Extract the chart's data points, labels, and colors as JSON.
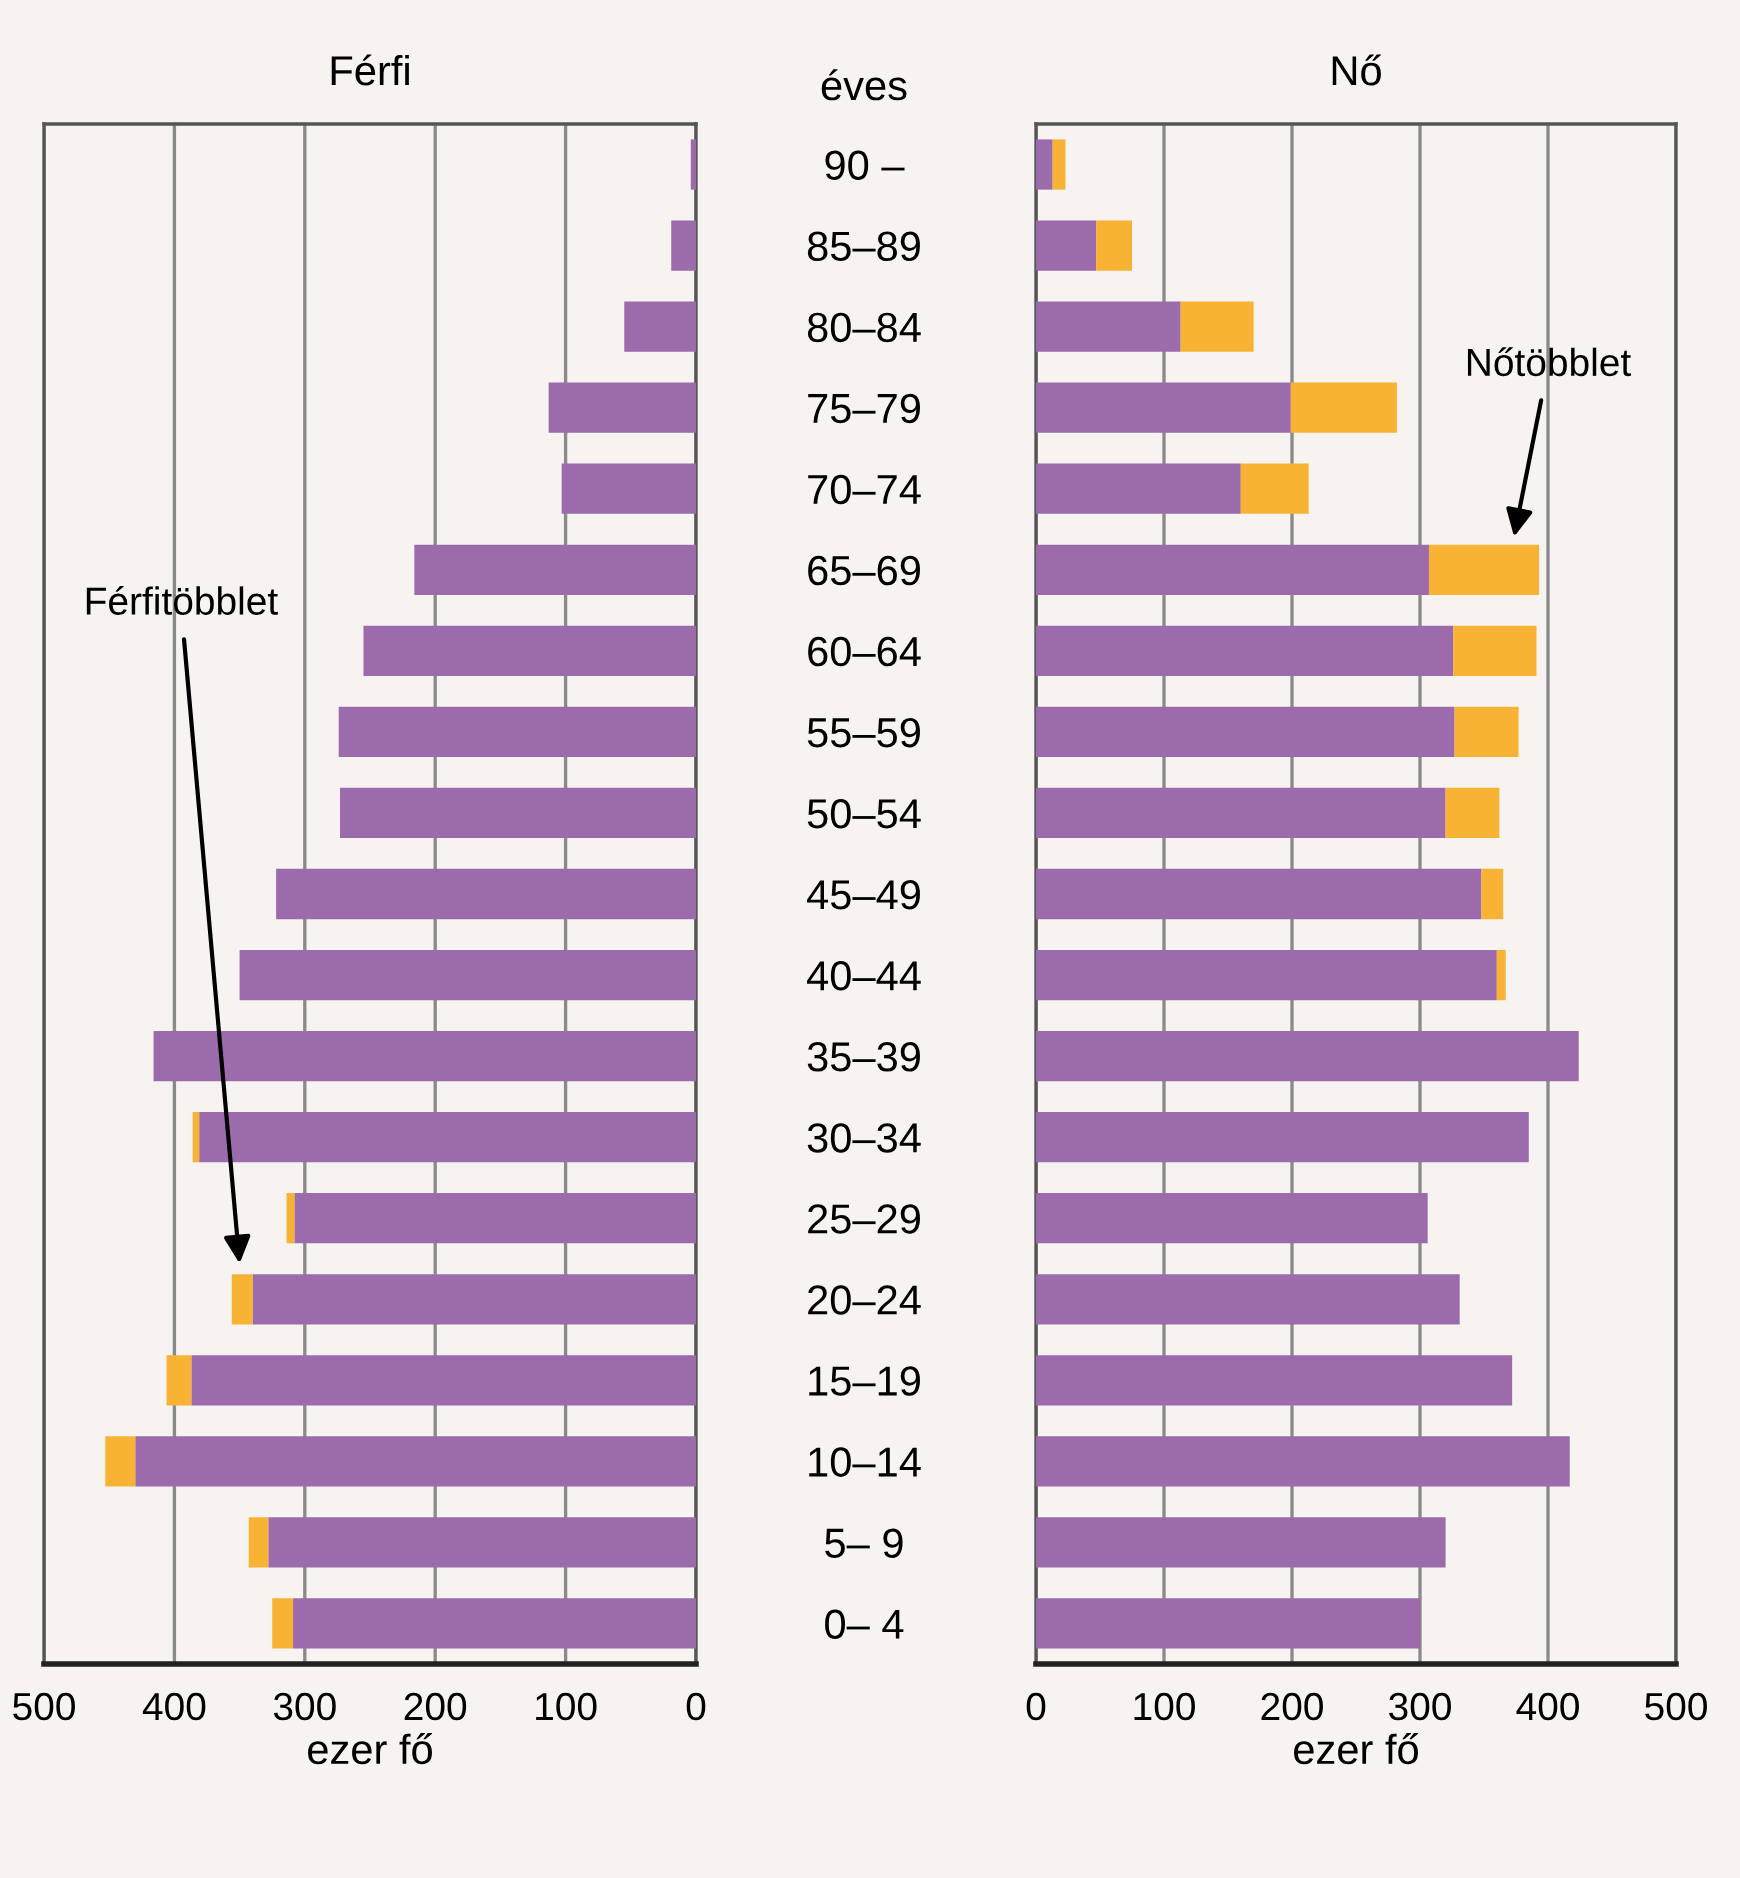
{
  "chart_data": [
    {
      "type": "bar",
      "orientation": "horizontal",
      "stacked": true,
      "title": "Férfi",
      "xlabel": "ezer fő",
      "categories": [
        null,
        null,
        null,
        null,
        null,
        null,
        null,
        null,
        null,
        null,
        null,
        null,
        null,
        null,
        null,
        null,
        null,
        null,
        null
      ],
      "series": [
        {
          "color": "#9b6bab",
          "values": [
            4,
            19,
            55,
            113,
            103,
            216,
            255,
            274,
            273,
            322,
            350,
            416,
            381,
            308,
            340,
            387,
            430,
            328,
            309
          ]
        },
        {
          "color": "#f8b334",
          "values": [
            0,
            0,
            0,
            0,
            0,
            0,
            0,
            0,
            0,
            0,
            0,
            0,
            5,
            6,
            16,
            19,
            23,
            15,
            16
          ]
        }
      ],
      "xlim": [
        500,
        0
      ],
      "xticks": [
        500,
        400,
        300,
        200,
        100,
        0
      ],
      "grid": "x",
      "tick_labels": "x",
      "annotations": [
        "Férfitöbblet"
      ]
    },
    {
      "type": "bar",
      "orientation": "horizontal",
      "stacked": true,
      "title": "Nő",
      "xlabel": "ezer fő",
      "ylabel": "éves",
      "categories": [
        "90 –",
        "85–89",
        "80–84",
        "75–79",
        "70–74",
        "65–69",
        "60–64",
        "55–59",
        "50–54",
        "45–49",
        "40–44",
        "35–39",
        "30–34",
        "25–29",
        "20–24",
        "15–19",
        "10–14",
        "5– 9",
        "0– 4"
      ],
      "series": [
        {
          "color": "#9b6bab",
          "values": [
            13,
            47,
            113,
            199,
            160,
            307,
            326,
            327,
            320,
            348,
            360,
            424,
            385,
            306,
            331,
            372,
            417,
            320,
            300
          ]
        },
        {
          "color": "#f8b334",
          "values": [
            10,
            28,
            57,
            83,
            53,
            86,
            65,
            50,
            42,
            17,
            7,
            0,
            0,
            0,
            0,
            0,
            0,
            0,
            0
          ]
        }
      ],
      "xlim": [
        0,
        500
      ],
      "xticks": [
        0,
        100,
        200,
        300,
        400,
        500
      ],
      "grid": "x",
      "annotations": [
        "Nőtöbblet"
      ]
    }
  ]
}
